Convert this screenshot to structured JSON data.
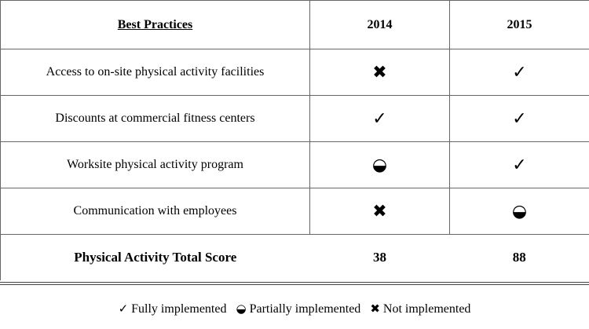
{
  "table": {
    "header": [
      "Best Practices",
      "2014",
      "2015"
    ],
    "rows": [
      [
        "Access to on-site physical activity facilities",
        "✖",
        "✓"
      ],
      [
        "Discounts at commercial fitness centers",
        "✓",
        "✓"
      ],
      [
        "Worksite physical activity program",
        "◒",
        "✓"
      ],
      [
        "Communication with employees",
        "✖",
        "◒"
      ]
    ],
    "total": [
      "Physical Activity Total Score",
      "38",
      "88"
    ]
  },
  "legend": [
    {
      "symbol": "✓",
      "label": "Fully implemented"
    },
    {
      "symbol": "◒",
      "label": "Partially implemented"
    },
    {
      "symbol": "✖",
      "label": "Not implemented"
    }
  ]
}
